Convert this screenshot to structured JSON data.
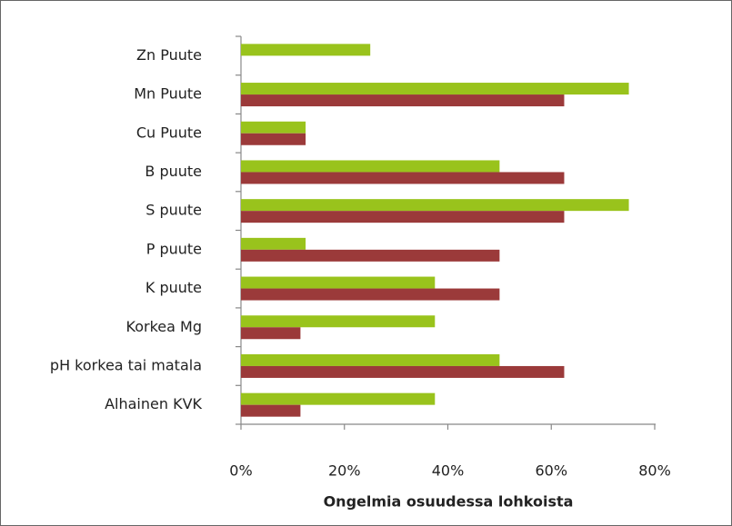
{
  "chart_data": {
    "type": "hbar",
    "categories": [
      "Zn Puute",
      "Mn Puute",
      "Cu Puute",
      "B puute",
      "S puute",
      "P puute",
      "K puute",
      "Korkea Mg",
      "pH korkea tai matala",
      "Alhainen KVK"
    ],
    "series": [
      {
        "color": "#99c31c",
        "values": [
          25,
          75,
          12.5,
          50,
          75,
          12.5,
          37.5,
          37.5,
          50,
          37.5
        ]
      },
      {
        "color": "#9b3a3a",
        "values": [
          null,
          62.5,
          12.5,
          62.5,
          62.5,
          50,
          50,
          11.5,
          62.5,
          11.5
        ]
      }
    ],
    "x_label": "Ongelmia osuudessa lohkoista",
    "xlim": [
      0,
      80
    ],
    "xticks": [
      {
        "value": 0,
        "label": "0%"
      },
      {
        "value": 20,
        "label": "20%"
      },
      {
        "value": 40,
        "label": "40%"
      },
      {
        "value": 60,
        "label": "60%"
      },
      {
        "value": 80,
        "label": "80%"
      }
    ]
  }
}
